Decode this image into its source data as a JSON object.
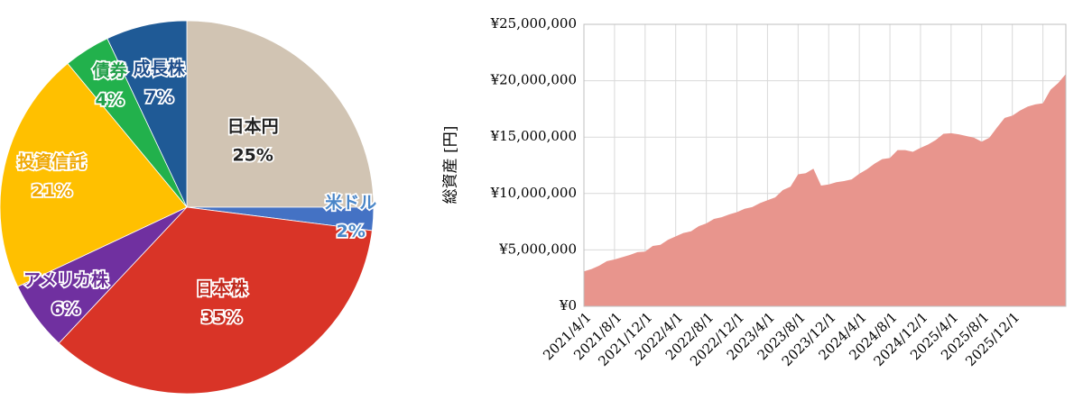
{
  "chart_data": [
    {
      "type": "pie",
      "title": "",
      "slices": [
        {
          "name": "日本円",
          "value": 25,
          "label": "25%",
          "color": "#d1c4b3",
          "text_color": "#222222"
        },
        {
          "name": "米ドル",
          "value": 2,
          "label": "2%",
          "color": "#4472c4",
          "text_color": "#4a86c8"
        },
        {
          "name": "日本株",
          "value": 35,
          "label": "35%",
          "color": "#d93427",
          "text_color": "#c0281c"
        },
        {
          "name": "アメリカ株",
          "value": 6,
          "label": "6%",
          "color": "#7030a0",
          "text_color": "#6a2c98"
        },
        {
          "name": "投資信託",
          "value": 21,
          "label": "21%",
          "color": "#ffc000",
          "text_color": "#f0a800"
        },
        {
          "name": "債券",
          "value": 4,
          "label": "4%",
          "color": "#22b14c",
          "text_color": "#22a04a"
        },
        {
          "name": "成長株",
          "value": 7,
          "label": "7%",
          "color": "#1f5a96",
          "text_color": "#1f4e8c"
        }
      ]
    },
    {
      "type": "area",
      "title": "",
      "xlabel": "",
      "ylabel": "総資産 [円]",
      "ylim": [
        0,
        25000000
      ],
      "y_ticks": [
        {
          "value": 0,
          "label": "¥0"
        },
        {
          "value": 5000000,
          "label": "¥5,000,000"
        },
        {
          "value": 10000000,
          "label": "¥10,000,000"
        },
        {
          "value": 15000000,
          "label": "¥15,000,000"
        },
        {
          "value": 20000000,
          "label": "¥20,000,000"
        },
        {
          "value": 25000000,
          "label": "¥25,000,000"
        }
      ],
      "x_tick_labels": [
        "2021/4/1",
        "2021/8/1",
        "2021/12/1",
        "2022/4/1",
        "2022/8/1",
        "2022/12/1",
        "2023/4/1",
        "2023/8/1",
        "2023/12/1",
        "2024/4/1",
        "2024/8/1",
        "2024/12/1",
        "2025/4/1",
        "2025/8/1",
        "2025/12/1"
      ],
      "grid": true,
      "fill_color": "#e8958d",
      "x_months": [
        0,
        1,
        2,
        3,
        4,
        5,
        6,
        7,
        8,
        9,
        10,
        11,
        12,
        13,
        14,
        15,
        16,
        17,
        18,
        19,
        20,
        21,
        22,
        23,
        24,
        25,
        26,
        27,
        28,
        29,
        30,
        31,
        32,
        33,
        34,
        35,
        36,
        37,
        38,
        39,
        40,
        41,
        42,
        43,
        44,
        45,
        46,
        47,
        48,
        49,
        50,
        51,
        52,
        53,
        54,
        55,
        56,
        57,
        58,
        59,
        60,
        61,
        62,
        63
      ],
      "values": [
        3100000,
        3300000,
        3600000,
        4000000,
        4150000,
        4350000,
        4550000,
        4800000,
        4850000,
        5350000,
        5450000,
        5900000,
        6200000,
        6500000,
        6650000,
        7100000,
        7350000,
        7750000,
        7900000,
        8150000,
        8350000,
        8650000,
        8800000,
        9150000,
        9400000,
        9650000,
        10300000,
        10600000,
        11700000,
        11800000,
        12200000,
        10700000,
        10800000,
        11000000,
        11100000,
        11250000,
        11750000,
        12150000,
        12650000,
        13050000,
        13150000,
        13850000,
        13850000,
        13700000,
        14050000,
        14350000,
        14750000,
        15300000,
        15350000,
        15250000,
        15100000,
        14950000,
        14600000,
        14950000,
        15850000,
        16700000,
        16900000,
        17350000,
        17700000,
        17900000,
        18000000,
        19200000,
        19800000,
        20600000
      ]
    }
  ]
}
